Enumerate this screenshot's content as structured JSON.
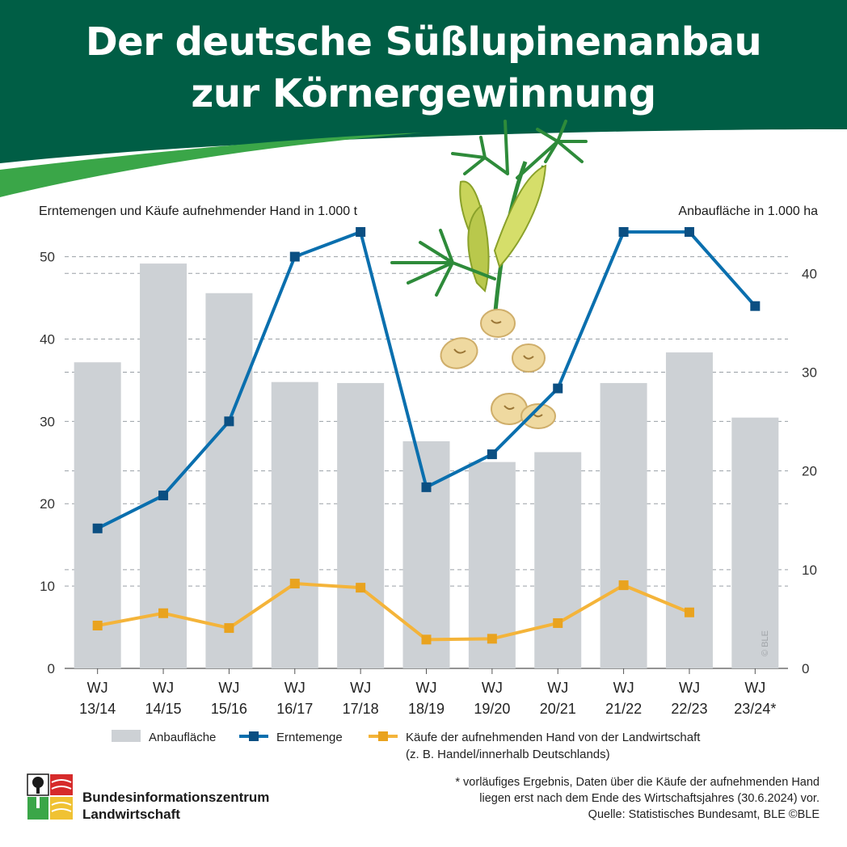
{
  "header": {
    "title_line1": "Der deutsche Süßlupinenanbau",
    "title_line2": "zur Körnergewinnung"
  },
  "colors": {
    "header_green": "#005e45",
    "accent_green": "#3aa648",
    "bar_gray": "#cdd1d5",
    "line_blue": "#0a6fae",
    "marker_blue": "#0b4f82",
    "line_yellow": "#f4b43a",
    "marker_yellow": "#e9a31f"
  },
  "chart_data": {
    "type": "bar+line",
    "categories_line1": [
      "WJ",
      "WJ",
      "WJ",
      "WJ",
      "WJ",
      "WJ",
      "WJ",
      "WJ",
      "WJ",
      "WJ",
      "WJ"
    ],
    "categories_line2": [
      "13/14",
      "14/15",
      "15/16",
      "16/17",
      "17/18",
      "18/19",
      "19/20",
      "20/21",
      "21/22",
      "22/23",
      "23/24*"
    ],
    "left_axis": {
      "label": "Erntemengen und Käufe aufnehmender Hand in 1.000 t",
      "min": 0,
      "max": 53,
      "ticks": [
        "0",
        "10",
        "20",
        "30",
        "40",
        "50"
      ]
    },
    "right_axis": {
      "label": "Anbaufläche in 1.000 ha",
      "min": 0,
      "max": 44.2,
      "ticks": [
        "0",
        "10",
        "20",
        "30",
        "40"
      ]
    },
    "series": [
      {
        "name": "Anbaufläche",
        "kind": "bar",
        "axis": "right",
        "values": [
          31,
          41,
          38,
          29,
          28.9,
          23,
          20.9,
          21.9,
          28.9,
          32,
          25.4
        ]
      },
      {
        "name": "Erntemenge",
        "kind": "line",
        "axis": "left",
        "values": [
          17,
          21,
          30,
          50,
          53,
          22,
          26,
          34,
          53,
          53,
          44
        ]
      },
      {
        "name": "Käufe der aufnehmenden Hand von der Landwirtschaft",
        "kind": "line",
        "axis": "left",
        "values": [
          5.2,
          6.7,
          4.9,
          10.3,
          9.8,
          3.5,
          3.6,
          5.5,
          10.1,
          6.8,
          null
        ]
      }
    ],
    "grid": "horizontal dashed"
  },
  "legend": {
    "bar_label": "Anbaufläche",
    "blue_label": "Erntemenge",
    "yellow_label_line1": "Käufe der aufnehmenden Hand von der Landwirtschaft",
    "yellow_label_line2": "(z. B. Handel/innerhalb Deutschlands)"
  },
  "footnote": {
    "line1": "* vorläufiges Ergebnis, Daten über die Käufe der aufnehmenden Hand",
    "line2": "liegen erst nach dem Ende des Wirtschaftsjahres (30.6.2024) vor.",
    "line3": "Quelle: Statistisches Bundesamt, BLE ©BLE"
  },
  "logo": {
    "line1": "Bundesinformationszentrum",
    "line2": "Landwirtschaft"
  },
  "copyright": "© BLE"
}
